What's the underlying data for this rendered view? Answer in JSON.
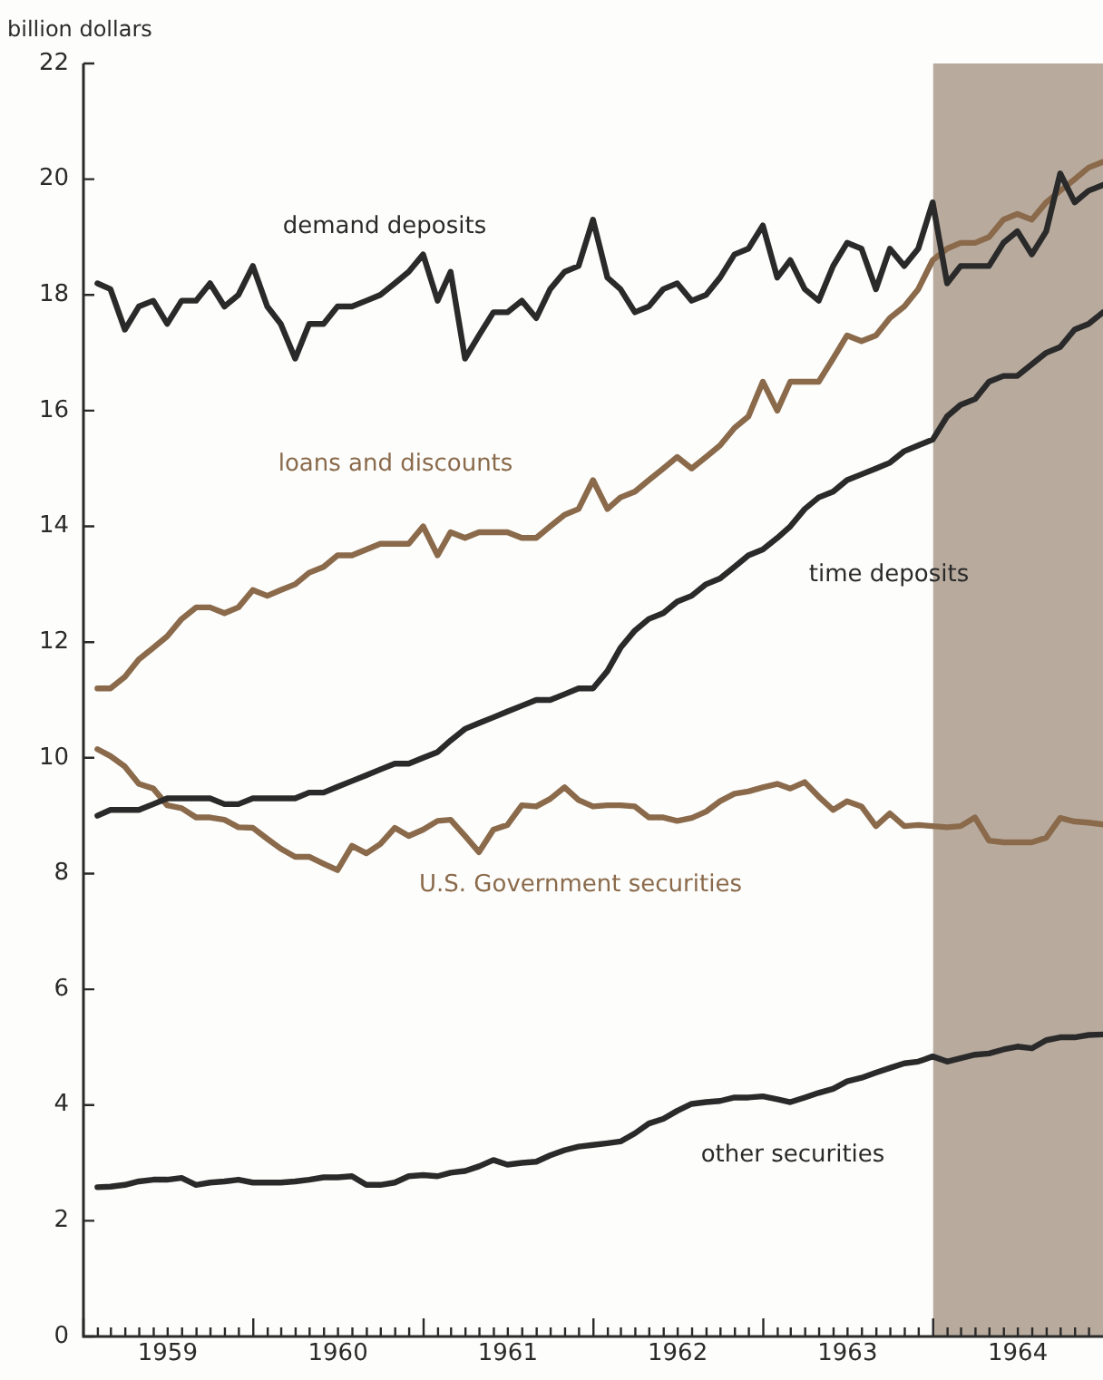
{
  "chart_data": {
    "type": "line",
    "ylabel": "billion dollars",
    "legend": false,
    "x": [
      "1959-01-31",
      "1959-02-28",
      "1959-03-31",
      "1959-04-30",
      "1959-05-31",
      "1959-06-30",
      "1959-07-31",
      "1959-08-31",
      "1959-09-30",
      "1959-10-31",
      "1959-11-30",
      "1959-12-31",
      "1960-01-31",
      "1960-02-29",
      "1960-03-31",
      "1960-04-30",
      "1960-05-31",
      "1960-06-30",
      "1960-07-31",
      "1960-08-31",
      "1960-09-30",
      "1960-10-31",
      "1960-11-30",
      "1960-12-31",
      "1961-01-31",
      "1961-02-28",
      "1961-03-31",
      "1961-04-30",
      "1961-05-31",
      "1961-06-30",
      "1961-07-31",
      "1961-08-31",
      "1961-09-30",
      "1961-10-31",
      "1961-11-30",
      "1961-12-31",
      "1962-01-31",
      "1962-02-28",
      "1962-03-31",
      "1962-04-30",
      "1962-05-31",
      "1962-06-30",
      "1962-07-31",
      "1962-08-31",
      "1962-09-30",
      "1962-10-31",
      "1962-11-30",
      "1962-12-31",
      "1963-01-31",
      "1963-02-28",
      "1963-03-31",
      "1963-04-30",
      "1963-05-31",
      "1963-06-30",
      "1963-07-31",
      "1963-08-31",
      "1963-09-30",
      "1963-10-31",
      "1963-11-30",
      "1963-12-31",
      "1964-01-31",
      "1964-02-29",
      "1964-03-31",
      "1964-04-30",
      "1964-05-31",
      "1964-06-30",
      "1964-07-31",
      "1964-08-31",
      "1964-09-30",
      "1964-10-31",
      "1964-11-30",
      "1964-12-31"
    ],
    "xlim": [
      "1959-01",
      "1964-12-31"
    ],
    "xticks": [
      {
        "value": "1959-01",
        "label": null
      },
      {
        "value": "1959-02",
        "label": null
      },
      {
        "value": "1959-03",
        "label": null
      },
      {
        "value": "1959-04",
        "label": null
      },
      {
        "value": "1959-05",
        "label": null
      },
      {
        "value": "1959-06",
        "label": null
      },
      {
        "value": "1959-07",
        "label": "1959"
      },
      {
        "value": "1959-08",
        "label": null
      },
      {
        "value": "1959-09",
        "label": null
      },
      {
        "value": "1959-10",
        "label": null
      },
      {
        "value": "1959-11",
        "label": null
      },
      {
        "value": "1959-12",
        "label": null
      },
      {
        "value": "1960-01",
        "label": null
      },
      {
        "value": "1960-02",
        "label": null
      },
      {
        "value": "1960-03",
        "label": null
      },
      {
        "value": "1960-04",
        "label": null
      },
      {
        "value": "1960-05",
        "label": null
      },
      {
        "value": "1960-06",
        "label": null
      },
      {
        "value": "1960-07",
        "label": "1960"
      },
      {
        "value": "1960-08",
        "label": null
      },
      {
        "value": "1960-09",
        "label": null
      },
      {
        "value": "1960-10",
        "label": null
      },
      {
        "value": "1960-11",
        "label": null
      },
      {
        "value": "1960-12",
        "label": null
      },
      {
        "value": "1961-01",
        "label": null
      },
      {
        "value": "1961-02",
        "label": null
      },
      {
        "value": "1961-03",
        "label": null
      },
      {
        "value": "1961-04",
        "label": null
      },
      {
        "value": "1961-05",
        "label": null
      },
      {
        "value": "1961-06",
        "label": null
      },
      {
        "value": "1961-07",
        "label": "1961"
      },
      {
        "value": "1961-08",
        "label": null
      },
      {
        "value": "1961-09",
        "label": null
      },
      {
        "value": "1961-10",
        "label": null
      },
      {
        "value": "1961-11",
        "label": null
      },
      {
        "value": "1961-12",
        "label": null
      },
      {
        "value": "1962-01",
        "label": null
      },
      {
        "value": "1962-02",
        "label": null
      },
      {
        "value": "1962-03",
        "label": null
      },
      {
        "value": "1962-04",
        "label": null
      },
      {
        "value": "1962-05",
        "label": null
      },
      {
        "value": "1962-06",
        "label": null
      },
      {
        "value": "1962-07",
        "label": "1962"
      },
      {
        "value": "1962-08",
        "label": null
      },
      {
        "value": "1962-09",
        "label": null
      },
      {
        "value": "1962-10",
        "label": null
      },
      {
        "value": "1962-11",
        "label": null
      },
      {
        "value": "1962-12",
        "label": null
      },
      {
        "value": "1963-01",
        "label": null
      },
      {
        "value": "1963-02",
        "label": null
      },
      {
        "value": "1963-03",
        "label": null
      },
      {
        "value": "1963-04",
        "label": null
      },
      {
        "value": "1963-05",
        "label": null
      },
      {
        "value": "1963-06",
        "label": null
      },
      {
        "value": "1963-07",
        "label": "1963"
      },
      {
        "value": "1963-08",
        "label": null
      },
      {
        "value": "1963-09",
        "label": null
      },
      {
        "value": "1963-10",
        "label": null
      },
      {
        "value": "1963-11",
        "label": null
      },
      {
        "value": "1963-12",
        "label": null
      },
      {
        "value": "1964-01",
        "label": null
      },
      {
        "value": "1964-02",
        "label": null
      },
      {
        "value": "1964-03",
        "label": null
      },
      {
        "value": "1964-04",
        "label": null
      },
      {
        "value": "1964-05",
        "label": null
      },
      {
        "value": "1964-06",
        "label": null
      },
      {
        "value": "1964-07",
        "label": "1964"
      },
      {
        "value": "1964-08",
        "label": null
      },
      {
        "value": "1964-09",
        "label": null
      },
      {
        "value": "1964-10",
        "label": null
      },
      {
        "value": "1964-11",
        "label": null
      },
      {
        "value": "1964-12",
        "label": null
      }
    ],
    "ylim": [
      0,
      22
    ],
    "yticks": [
      0,
      2,
      4,
      6,
      8,
      10,
      12,
      14,
      16,
      18,
      20,
      22
    ],
    "bands": [
      {
        "axis": "x",
        "from": "1964-01",
        "to": "1964-12-31",
        "color": "#b8ab9e"
      }
    ],
    "series": [
      {
        "name": "demand deposits",
        "color": "#2a2a2a",
        "values": [
          18.2,
          18.1,
          17.4,
          17.8,
          17.9,
          17.5,
          17.9,
          17.9,
          18.2,
          17.8,
          18.0,
          18.5,
          17.8,
          17.5,
          16.9,
          17.5,
          17.5,
          17.8,
          17.8,
          17.9,
          18.0,
          18.2,
          18.4,
          18.7,
          17.9,
          18.4,
          16.9,
          17.3,
          17.7,
          17.7,
          17.9,
          17.6,
          18.1,
          18.4,
          18.5,
          19.3,
          18.3,
          18.1,
          17.7,
          17.8,
          18.1,
          18.2,
          17.9,
          18.0,
          18.3,
          18.7,
          18.8,
          19.2,
          18.3,
          18.6,
          18.1,
          17.9,
          18.5,
          18.9,
          18.8,
          18.1,
          18.8,
          18.5,
          18.8,
          19.6,
          18.2,
          18.5,
          18.5,
          18.5,
          18.9,
          19.1,
          18.7,
          19.1,
          20.1,
          19.6,
          19.8,
          19.9
        ]
      },
      {
        "name": "loans and discounts",
        "color": "#8a6a4b",
        "values": [
          11.2,
          11.2,
          11.4,
          11.7,
          11.9,
          12.1,
          12.4,
          12.6,
          12.6,
          12.5,
          12.6,
          12.9,
          12.8,
          12.9,
          13.0,
          13.2,
          13.3,
          13.5,
          13.5,
          13.6,
          13.7,
          13.7,
          13.7,
          14.0,
          13.5,
          13.9,
          13.8,
          13.9,
          13.9,
          13.9,
          13.8,
          13.8,
          14.0,
          14.2,
          14.3,
          14.8,
          14.3,
          14.5,
          14.6,
          14.8,
          15.0,
          15.2,
          15.0,
          15.2,
          15.4,
          15.7,
          15.9,
          16.5,
          16.0,
          16.5,
          16.5,
          16.5,
          16.9,
          17.3,
          17.2,
          17.3,
          17.6,
          17.8,
          18.1,
          18.6,
          18.8,
          18.9,
          18.9,
          19.0,
          19.3,
          19.4,
          19.3,
          19.6,
          19.8,
          20.0,
          20.2,
          20.3
        ]
      },
      {
        "name": "time deposits",
        "color": "#2a2a2a",
        "values": [
          9.0,
          9.1,
          9.1,
          9.1,
          9.2,
          9.3,
          9.3,
          9.3,
          9.3,
          9.2,
          9.2,
          9.3,
          9.3,
          9.3,
          9.3,
          9.4,
          9.4,
          9.5,
          9.6,
          9.7,
          9.8,
          9.9,
          9.9,
          10.0,
          10.1,
          10.3,
          10.5,
          10.6,
          10.7,
          10.8,
          10.9,
          11.0,
          11.0,
          11.1,
          11.2,
          11.2,
          11.5,
          11.9,
          12.2,
          12.4,
          12.5,
          12.7,
          12.8,
          13.0,
          13.1,
          13.3,
          13.5,
          13.6,
          13.8,
          14.0,
          14.3,
          14.5,
          14.6,
          14.8,
          14.9,
          15.0,
          15.1,
          15.3,
          15.4,
          15.5,
          15.9,
          16.1,
          16.2,
          16.5,
          16.6,
          16.6,
          16.8,
          17.0,
          17.1,
          17.4,
          17.5,
          17.7
        ]
      },
      {
        "name": "U.S. Government securities",
        "color": "#8a6a4b",
        "values": [
          10.15,
          10.03,
          9.85,
          9.55,
          9.47,
          9.18,
          9.13,
          8.97,
          8.97,
          8.93,
          8.8,
          8.79,
          8.6,
          8.43,
          8.29,
          8.29,
          8.17,
          8.06,
          8.48,
          8.35,
          8.51,
          8.79,
          8.65,
          8.76,
          8.91,
          8.93,
          8.65,
          8.37,
          8.76,
          8.84,
          9.18,
          9.16,
          9.29,
          9.49,
          9.27,
          9.16,
          9.18,
          9.18,
          9.16,
          8.97,
          8.97,
          8.91,
          8.96,
          9.07,
          9.25,
          9.38,
          9.42,
          9.49,
          9.55,
          9.47,
          9.58,
          9.33,
          9.1,
          9.25,
          9.16,
          8.82,
          9.04,
          8.82,
          8.84,
          8.82,
          8.8,
          8.82,
          8.97,
          8.57,
          8.54,
          8.54,
          8.54,
          8.62,
          8.96,
          8.9,
          8.88,
          8.85
        ]
      },
      {
        "name": "other securities",
        "color": "#2a2a2a",
        "values": [
          2.58,
          2.59,
          2.62,
          2.68,
          2.71,
          2.71,
          2.74,
          2.62,
          2.66,
          2.68,
          2.71,
          2.66,
          2.66,
          2.66,
          2.68,
          2.71,
          2.75,
          2.75,
          2.77,
          2.62,
          2.62,
          2.66,
          2.77,
          2.79,
          2.77,
          2.83,
          2.86,
          2.94,
          3.05,
          2.97,
          3.0,
          3.02,
          3.13,
          3.22,
          3.28,
          3.31,
          3.34,
          3.37,
          3.51,
          3.68,
          3.76,
          3.9,
          4.02,
          4.05,
          4.07,
          4.13,
          4.13,
          4.15,
          4.1,
          4.05,
          4.13,
          4.21,
          4.28,
          4.41,
          4.47,
          4.56,
          4.64,
          4.72,
          4.75,
          4.84,
          4.75,
          4.81,
          4.87,
          4.89,
          4.96,
          5.01,
          4.98,
          5.12,
          5.17,
          5.17,
          5.21,
          5.22
        ]
      }
    ]
  }
}
